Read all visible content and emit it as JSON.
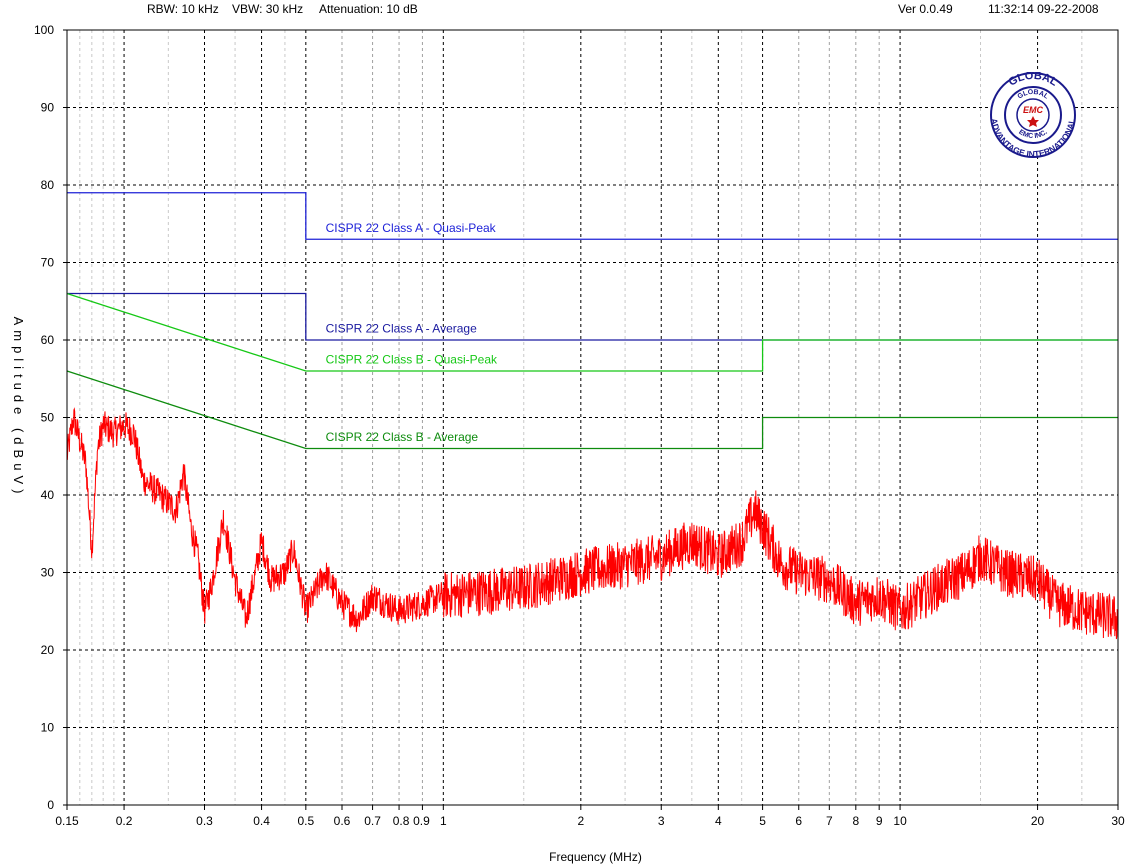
{
  "header": {
    "rbw": "RBW: 10 kHz",
    "vbw": "VBW: 30 kHz",
    "attenuation": "Attenuation: 10 dB",
    "version": "Ver 0.0.49",
    "timestamp": "11:32:14 09-22-2008"
  },
  "logo": {
    "outer_text": "ADVANTAGE INTERNATIONAL",
    "top_text": "GLOBAL",
    "inner_top": "GLOBAL",
    "center": "EMC",
    "inner_bottom": "EMC INC."
  },
  "colors": {
    "class_a": "#1e22d8",
    "class_a_avg": "#1a1aa0",
    "class_b_qp": "#16c816",
    "class_b_avg": "#0e8c0e",
    "trace": "#ff0000",
    "grid": "#000000"
  },
  "chart_data": {
    "type": "line",
    "xlabel": "Frequency (MHz)",
    "ylabel": "Amplitude (dBuV)",
    "xscale": "log",
    "xlim": [
      0.15,
      30
    ],
    "ylim": [
      0,
      100
    ],
    "grid": true,
    "x_ticks": [
      {
        "v": 0.15,
        "label": "0.15"
      },
      {
        "v": 0.2,
        "label": "0.2"
      },
      {
        "v": 0.3,
        "label": "0.3"
      },
      {
        "v": 0.4,
        "label": "0.4"
      },
      {
        "v": 0.5,
        "label": "0.5"
      },
      {
        "v": 0.6,
        "label": "0.6"
      },
      {
        "v": 0.7,
        "label": "0.7"
      },
      {
        "v": 0.8,
        "label": "0.8"
      },
      {
        "v": 0.9,
        "label": "0.9"
      },
      {
        "v": 1,
        "label": "1"
      },
      {
        "v": 2,
        "label": "2"
      },
      {
        "v": 3,
        "label": "3"
      },
      {
        "v": 4,
        "label": "4"
      },
      {
        "v": 5,
        "label": "5"
      },
      {
        "v": 6,
        "label": "6"
      },
      {
        "v": 7,
        "label": "7"
      },
      {
        "v": 8,
        "label": "8"
      },
      {
        "v": 9,
        "label": "9"
      },
      {
        "v": 10,
        "label": "10"
      },
      {
        "v": 20,
        "label": "20"
      },
      {
        "v": 30,
        "label": "30"
      }
    ],
    "y_ticks": [
      0,
      10,
      20,
      30,
      40,
      50,
      60,
      70,
      80,
      90,
      100
    ],
    "limit_lines": [
      {
        "name": "CISPR 22 Class A - Quasi-Peak",
        "color_key": "class_a",
        "points": [
          [
            0.15,
            79
          ],
          [
            0.5,
            79
          ],
          [
            0.5,
            73
          ],
          [
            30,
            73
          ]
        ],
        "label_at": [
          0.52,
          74.2
        ]
      },
      {
        "name": "CISPR 22 Class A - Average",
        "color_key": "class_a_avg",
        "points": [
          [
            0.15,
            66
          ],
          [
            0.5,
            66
          ],
          [
            0.5,
            60
          ],
          [
            30,
            60
          ]
        ],
        "label_at": [
          0.52,
          61.2
        ]
      },
      {
        "name": "CISPR 22 Class B - Quasi-Peak",
        "color_key": "class_b_qp",
        "points": [
          [
            0.15,
            66
          ],
          [
            0.5,
            56
          ],
          [
            5,
            56
          ],
          [
            5,
            60
          ],
          [
            30,
            60
          ]
        ],
        "label_at": [
          0.52,
          57.2
        ]
      },
      {
        "name": "CISPR 22 Class B - Average",
        "color_key": "class_b_avg",
        "points": [
          [
            0.15,
            56
          ],
          [
            0.5,
            46
          ],
          [
            5,
            46
          ],
          [
            5,
            50
          ],
          [
            30,
            50
          ]
        ],
        "label_at": [
          0.52,
          47.2
        ]
      }
    ],
    "series": [
      {
        "color_key": "trace",
        "noise": 2.2,
        "envelope": [
          [
            0.15,
            45
          ],
          [
            0.155,
            50
          ],
          [
            0.16,
            47
          ],
          [
            0.165,
            44
          ],
          [
            0.17,
            33
          ],
          [
            0.175,
            46
          ],
          [
            0.18,
            49
          ],
          [
            0.19,
            48
          ],
          [
            0.2,
            49
          ],
          [
            0.21,
            48
          ],
          [
            0.22,
            42
          ],
          [
            0.24,
            40
          ],
          [
            0.26,
            38
          ],
          [
            0.27,
            43
          ],
          [
            0.28,
            36
          ],
          [
            0.29,
            32
          ],
          [
            0.3,
            25
          ],
          [
            0.31,
            28
          ],
          [
            0.33,
            37
          ],
          [
            0.35,
            29
          ],
          [
            0.37,
            24
          ],
          [
            0.4,
            34
          ],
          [
            0.42,
            29
          ],
          [
            0.45,
            30
          ],
          [
            0.47,
            33
          ],
          [
            0.5,
            25
          ],
          [
            0.55,
            30
          ],
          [
            0.6,
            26
          ],
          [
            0.65,
            24
          ],
          [
            0.7,
            27
          ],
          [
            0.8,
            25
          ],
          [
            0.9,
            26
          ],
          [
            1,
            27
          ],
          [
            1.5,
            28
          ],
          [
            2,
            30
          ],
          [
            2.5,
            31
          ],
          [
            3,
            32
          ],
          [
            3.5,
            34
          ],
          [
            4,
            32
          ],
          [
            4.5,
            34
          ],
          [
            4.8,
            38
          ],
          [
            5,
            36
          ],
          [
            5.5,
            31
          ],
          [
            6,
            30
          ],
          [
            7,
            29
          ],
          [
            8,
            26
          ],
          [
            9,
            27
          ],
          [
            10,
            25
          ],
          [
            12,
            28
          ],
          [
            14,
            30
          ],
          [
            15,
            32
          ],
          [
            17,
            30
          ],
          [
            20,
            29
          ],
          [
            22,
            26
          ],
          [
            25,
            25
          ],
          [
            30,
            24
          ]
        ]
      }
    ]
  }
}
